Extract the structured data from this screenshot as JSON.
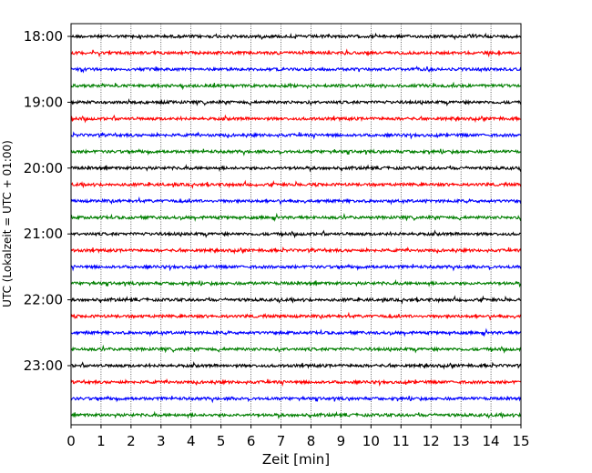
{
  "chart_data": {
    "type": "line",
    "subtype": "helicorder",
    "xlabel": "Zeit  [min]",
    "ylabel": "UTC (Lokalzeit = UTC + 01:00)",
    "xlim": [
      0,
      15
    ],
    "x_ticks": [
      "0",
      "1",
      "2",
      "3",
      "4",
      "5",
      "6",
      "7",
      "8",
      "9",
      "10",
      "11",
      "12",
      "13",
      "14",
      "15"
    ],
    "y_tick_labels": [
      "18:00",
      "19:00",
      "20:00",
      "21:00",
      "22:00",
      "23:00"
    ],
    "traces_per_hour": 4,
    "trace_count": 24,
    "trace_colors": [
      "#000000",
      "#ff0000",
      "#0000ff",
      "#007f00"
    ],
    "vertical_grid": true,
    "grid_style": "dotted"
  }
}
